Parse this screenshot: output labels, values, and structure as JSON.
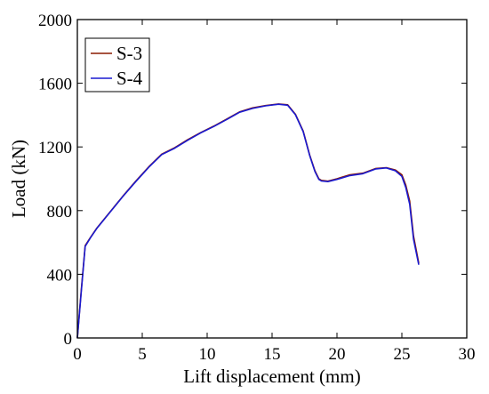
{
  "chart_data": {
    "type": "line",
    "title": "",
    "xlabel": "Lift displacement (mm)",
    "ylabel": "Load (kN)",
    "xlim": [
      0,
      30
    ],
    "ylim": [
      0,
      2000
    ],
    "xticks": [
      0,
      5,
      10,
      15,
      20,
      25,
      30
    ],
    "yticks": [
      0,
      400,
      800,
      1200,
      1600,
      2000
    ],
    "grid": false,
    "legend": "top-left",
    "series": [
      {
        "name": "S-3",
        "color": "#8b1a00",
        "x": [
          0,
          0.3,
          0.6,
          1.0,
          1.5,
          2.5,
          3.5,
          4.5,
          5.5,
          6.5,
          7.5,
          8.5,
          9.5,
          10.5,
          11.5,
          12.5,
          13.5,
          14.5,
          15.5,
          16.2,
          16.8,
          17.4,
          17.9,
          18.3,
          18.6,
          18.8,
          19.3,
          20.0,
          21.0,
          22.0,
          23.0,
          23.8,
          24.5,
          25.0,
          25.3,
          25.6,
          25.9,
          26.3
        ],
        "y": [
          0,
          300,
          580,
          630,
          690,
          790,
          890,
          985,
          1075,
          1155,
          1195,
          1245,
          1290,
          1330,
          1375,
          1420,
          1445,
          1460,
          1470,
          1465,
          1405,
          1300,
          1150,
          1050,
          1000,
          990,
          985,
          1000,
          1025,
          1035,
          1065,
          1070,
          1055,
          1025,
          960,
          860,
          640,
          470
        ]
      },
      {
        "name": "S-4",
        "color": "#1a1ad0",
        "x": [
          0,
          0.3,
          0.6,
          1.0,
          1.5,
          2.5,
          3.5,
          4.5,
          5.5,
          6.5,
          7.5,
          8.5,
          9.5,
          10.5,
          11.5,
          12.5,
          13.5,
          14.5,
          15.5,
          16.2,
          16.8,
          17.4,
          17.9,
          18.3,
          18.6,
          18.8,
          19.3,
          20.0,
          21.0,
          22.0,
          23.0,
          23.8,
          24.5,
          25.0,
          25.3,
          25.6,
          25.9,
          26.3
        ],
        "y": [
          0,
          290,
          575,
          628,
          688,
          788,
          888,
          982,
          1072,
          1152,
          1192,
          1242,
          1288,
          1328,
          1372,
          1418,
          1442,
          1458,
          1468,
          1462,
          1402,
          1296,
          1146,
          1046,
          996,
          986,
          982,
          996,
          1020,
          1032,
          1062,
          1068,
          1050,
          1015,
          945,
          840,
          620,
          460
        ]
      }
    ]
  }
}
